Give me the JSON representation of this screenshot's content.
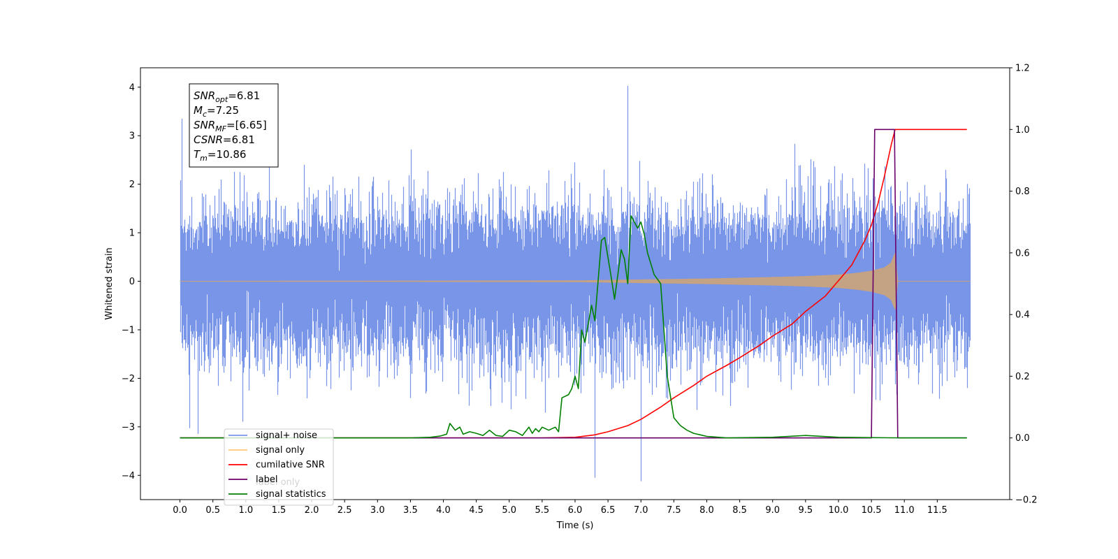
{
  "chart_data": {
    "type": "line",
    "title": "",
    "xlabel": "Time (s)",
    "ylabel": "Whitened strain",
    "xlim": [
      -0.6,
      12.6
    ],
    "ylim": [
      -4.5,
      4.4
    ],
    "y2lim": [
      -0.2,
      1.2
    ],
    "grid": false,
    "legend_position": "bottom-left",
    "x_ticks": [
      0.0,
      0.5,
      1.0,
      1.5,
      2.0,
      2.5,
      3.0,
      3.5,
      4.0,
      4.5,
      5.0,
      5.5,
      6.0,
      6.5,
      7.0,
      7.5,
      8.0,
      8.5,
      9.0,
      9.5,
      10.0,
      10.5,
      11.0,
      11.5
    ],
    "x_tick_labels": [
      "0.0",
      "0.5",
      "1.0",
      "1.5",
      "2.0",
      "2.5",
      "3.0",
      "3.5",
      "4.0",
      "4.5",
      "5.0",
      "5.5",
      "6.0",
      "6.5",
      "7.0",
      "7.5",
      "8.0",
      "8.5",
      "9.0",
      "9.5",
      "10.0",
      "10.5",
      "11.0",
      "11.5"
    ],
    "y_ticks": [
      -4,
      -3,
      -2,
      -1,
      0,
      1,
      2,
      3,
      4
    ],
    "y_tick_labels": [
      "−4",
      "−3",
      "−2",
      "−1",
      "0",
      "1",
      "2",
      "3",
      "4"
    ],
    "y2_ticks": [
      -0.2,
      0.0,
      0.2,
      0.4,
      0.6,
      0.8,
      1.0,
      1.2
    ],
    "y2_tick_labels": [
      "−0.2",
      "0.0",
      "0.2",
      "0.4",
      "0.6",
      "0.8",
      "1.0",
      "1.2"
    ],
    "annotation": {
      "lines": [
        {
          "sym": "SNR",
          "sub": "opt",
          "rest": "=6.81"
        },
        {
          "sym": "M",
          "sub": "c",
          "rest": "=7.25"
        },
        {
          "sym": "SNR",
          "sub": "MF",
          "rest": "=[6.65]"
        },
        {
          "sym": "CSNR",
          "sub": "",
          "rest": "=6.81"
        },
        {
          "sym": "T",
          "sub": "m",
          "rest": "=10.86"
        }
      ]
    },
    "legend": [
      {
        "label": "signal+ noise",
        "color": "#7995e8"
      },
      {
        "label": "signal only",
        "color": "#ffc87a"
      },
      {
        "label": "cumilative SNR",
        "color": "#ff0000"
      },
      {
        "label": "label",
        "color": "#6a006a"
      },
      {
        "label": "signal statistics",
        "color": "#008000"
      }
    ],
    "obscured_legend_text": [
      "label only"
    ],
    "series": [
      {
        "name": "signal+ noise",
        "axis": "left",
        "color": "#7995e8",
        "kind": "noise",
        "x_range": [
          0.0,
          12.0
        ],
        "envelope_typical": [
          -2.3,
          2.3
        ],
        "peak_max": 4.03,
        "peak_min": -4.12
      },
      {
        "name": "signal only",
        "axis": "left",
        "color": "#c8a27e",
        "kind": "chirp",
        "x_range": [
          0.0,
          12.0
        ],
        "merger_time": 10.86,
        "envelope": {
          "x": [
            0.0,
            6.0,
            7.0,
            8.0,
            9.0,
            9.5,
            10.0,
            10.3,
            10.5,
            10.7,
            10.8,
            10.86,
            10.9,
            12.0
          ],
          "y": [
            0.0,
            0.01,
            0.03,
            0.05,
            0.08,
            0.1,
            0.13,
            0.17,
            0.21,
            0.28,
            0.38,
            0.58,
            0.0,
            0.0
          ]
        }
      },
      {
        "name": "cumilative SNR",
        "axis": "right",
        "color": "#ff0000",
        "x": [
          0.0,
          5.5,
          6.0,
          6.3,
          6.5,
          6.8,
          7.0,
          7.3,
          7.5,
          7.8,
          8.0,
          8.3,
          8.5,
          8.8,
          9.0,
          9.3,
          9.5,
          9.8,
          10.0,
          10.2,
          10.4,
          10.5,
          10.6,
          10.7,
          10.8,
          10.86,
          11.0,
          11.5,
          11.95
        ],
        "y": [
          0.0,
          0.0,
          0.002,
          0.01,
          0.02,
          0.04,
          0.06,
          0.1,
          0.13,
          0.17,
          0.2,
          0.235,
          0.26,
          0.3,
          0.33,
          0.37,
          0.41,
          0.46,
          0.51,
          0.56,
          0.64,
          0.69,
          0.76,
          0.85,
          0.95,
          1.0,
          1.0,
          1.0,
          1.0
        ]
      },
      {
        "name": "label",
        "axis": "right",
        "color": "#6a006a",
        "x": [
          0.0,
          10.5,
          10.55,
          10.85,
          10.9,
          11.95
        ],
        "y": [
          0.0,
          0.0,
          1.0,
          1.0,
          0.0,
          0.0
        ]
      },
      {
        "name": "signal statistics",
        "axis": "right",
        "color": "#008000",
        "x": [
          0.0,
          3.5,
          3.8,
          3.95,
          4.05,
          4.1,
          4.18,
          4.25,
          4.3,
          4.4,
          4.5,
          4.6,
          4.7,
          4.8,
          4.9,
          5.0,
          5.1,
          5.2,
          5.3,
          5.35,
          5.4,
          5.45,
          5.5,
          5.6,
          5.7,
          5.75,
          5.8,
          5.9,
          5.95,
          6.0,
          6.05,
          6.1,
          6.15,
          6.25,
          6.3,
          6.4,
          6.45,
          6.55,
          6.6,
          6.7,
          6.75,
          6.8,
          6.85,
          6.9,
          6.95,
          7.0,
          7.05,
          7.1,
          7.2,
          7.3,
          7.4,
          7.5,
          7.6,
          7.7,
          7.8,
          7.9,
          8.0,
          8.3,
          9.0,
          9.5,
          10.0,
          10.5,
          11.0,
          11.95
        ],
        "y": [
          0.0,
          0.0,
          0.002,
          0.006,
          0.012,
          0.047,
          0.025,
          0.035,
          0.012,
          0.02,
          0.015,
          0.008,
          0.025,
          0.008,
          0.005,
          0.025,
          0.02,
          0.008,
          0.035,
          0.015,
          0.03,
          0.02,
          0.035,
          0.025,
          0.035,
          0.02,
          0.13,
          0.14,
          0.16,
          0.2,
          0.16,
          0.35,
          0.31,
          0.43,
          0.38,
          0.64,
          0.65,
          0.52,
          0.45,
          0.61,
          0.58,
          0.5,
          0.72,
          0.7,
          0.68,
          0.7,
          0.66,
          0.6,
          0.53,
          0.5,
          0.2,
          0.065,
          0.04,
          0.025,
          0.015,
          0.01,
          0.005,
          0.0,
          0.002,
          0.008,
          0.002,
          0.001,
          0.0,
          0.0
        ]
      }
    ]
  }
}
